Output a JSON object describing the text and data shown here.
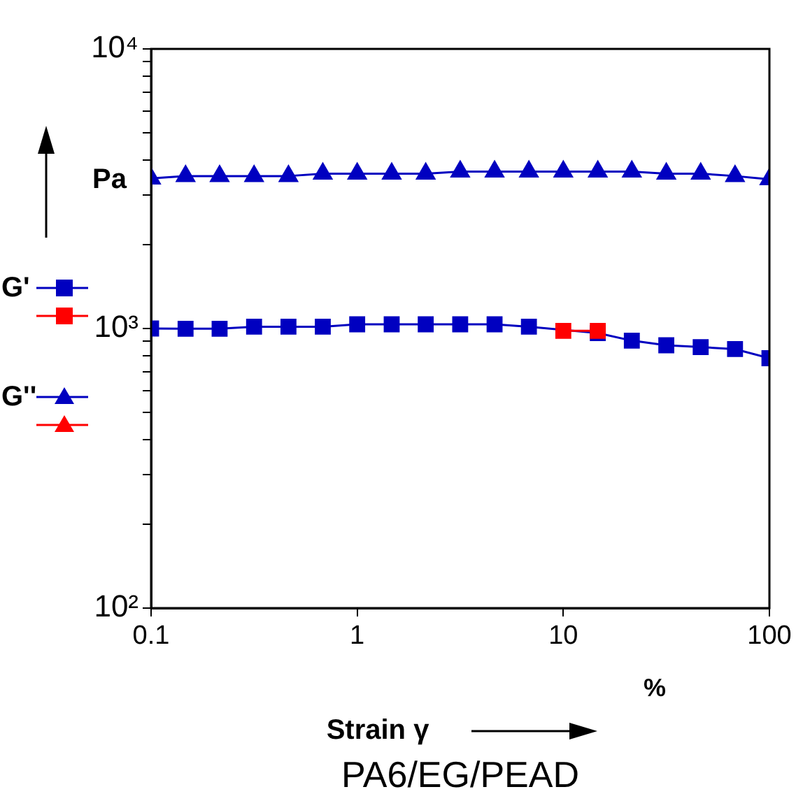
{
  "chart_data": {
    "type": "line",
    "title": "PA6/EG/PEAD",
    "xlabel": "Strain γ",
    "ylabel": "Pa",
    "annotations": [
      "%"
    ],
    "log": "xy",
    "grid": false,
    "legend": "left",
    "line_style": "solid",
    "x": [
      0.1,
      0.147,
      0.215,
      0.316,
      0.464,
      0.681,
      1,
      1.47,
      2.15,
      3.16,
      4.64,
      6.81,
      10,
      14.7,
      21.5,
      31.6,
      46.4,
      68.1,
      100
    ],
    "series": [
      {
        "name": "G'",
        "color": "#0000c0",
        "marker": "square",
        "values": [
          1000,
          998,
          998,
          1015,
          1015,
          1015,
          1035,
          1035,
          1035,
          1035,
          1035,
          1015,
          null,
          963,
          905,
          871,
          858,
          844,
          783
        ]
      },
      {
        "color": "#ff0000",
        "marker": "square",
        "x": [
          10,
          14.7
        ],
        "values": [
          981,
          981
        ]
      },
      {
        "name": "G''",
        "color": "#0000c0",
        "marker": "triangle",
        "values": [
          3440,
          3510,
          3510,
          3510,
          3510,
          3580,
          3580,
          3580,
          3580,
          3640,
          3640,
          3640,
          3640,
          3640,
          3640,
          3580,
          3580,
          3510,
          3420
        ]
      }
    ],
    "xlim": [
      0.1,
      100
    ],
    "xticks": [
      0.1,
      1,
      10,
      100
    ],
    "ylim": [
      100,
      10000
    ],
    "yticks": [
      {
        "value": 100,
        "label": "10²"
      },
      {
        "value": 200,
        "label": null
      },
      {
        "value": 300,
        "label": null
      },
      {
        "value": 400,
        "label": null
      },
      {
        "value": 500,
        "label": null
      },
      {
        "value": 600,
        "label": null
      },
      {
        "value": 700,
        "label": null
      },
      {
        "value": 800,
        "label": null
      },
      {
        "value": 900,
        "label": null
      },
      {
        "value": 1000,
        "label": "10³"
      },
      {
        "value": 2000,
        "label": null
      },
      {
        "value": 3000,
        "label": null
      },
      {
        "value": 4000,
        "label": null
      },
      {
        "value": 5000,
        "label": null
      },
      {
        "value": 6000,
        "label": null
      },
      {
        "value": 7000,
        "label": null
      },
      {
        "value": 8000,
        "label": null
      },
      {
        "value": 9000,
        "label": null
      },
      {
        "value": 10000,
        "label": "10⁴"
      }
    ]
  }
}
